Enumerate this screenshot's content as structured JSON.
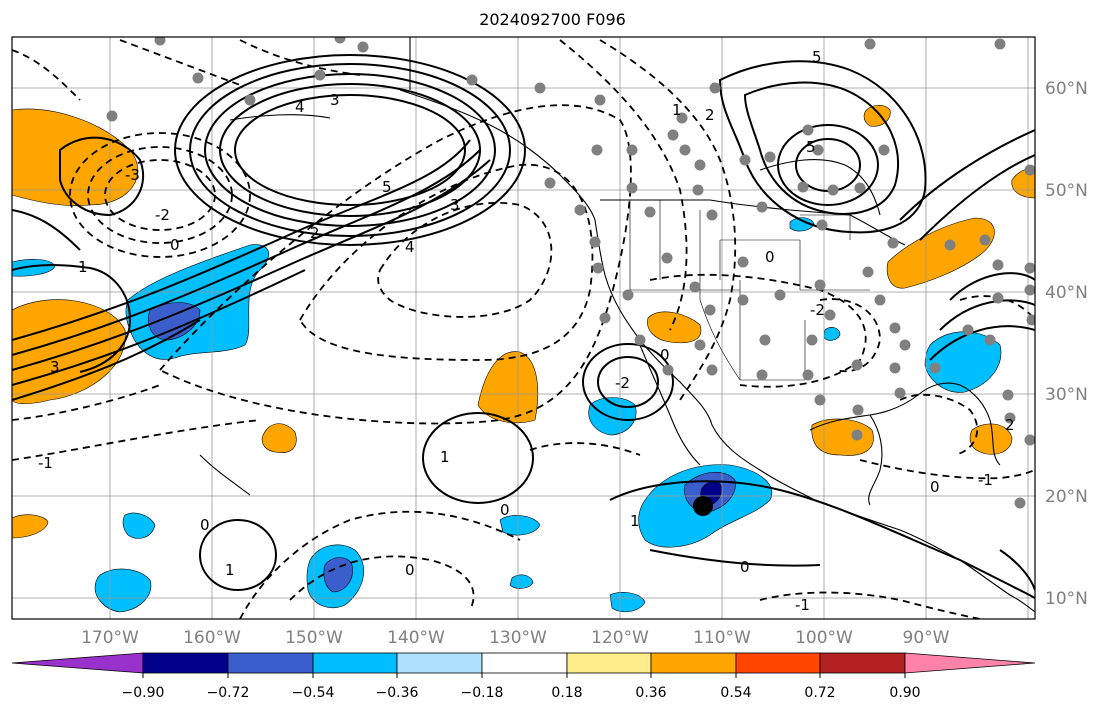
{
  "title": "2024092700 F096",
  "map": {
    "lat_labels": [
      "60°N",
      "50°N",
      "40°N",
      "30°N",
      "20°N",
      "10°N"
    ],
    "lon_labels": [
      "170°W",
      "160°W",
      "150°W",
      "140°W",
      "130°W",
      "120°W",
      "110°W",
      "100°W",
      "90°W"
    ],
    "contour_labels": [
      "5",
      "4",
      "3",
      "2",
      "1",
      "0",
      "-1",
      "-2",
      "-3",
      "-4",
      "-5"
    ],
    "stipple_color": "#808080"
  },
  "colorbar": {
    "tick_labels": [
      "−0.90",
      "−0.72",
      "−0.54",
      "−0.36",
      "−0.18",
      "0.18",
      "0.36",
      "0.54",
      "0.72",
      "0.90"
    ],
    "colors": [
      "#9932cc",
      "#00008b",
      "#3a5fcd",
      "#00bfff",
      "#b0e2ff",
      "#ffffff",
      "#ffec8b",
      "#ffa500",
      "#ff4500",
      "#b22222",
      "#ff82ab"
    ]
  }
}
